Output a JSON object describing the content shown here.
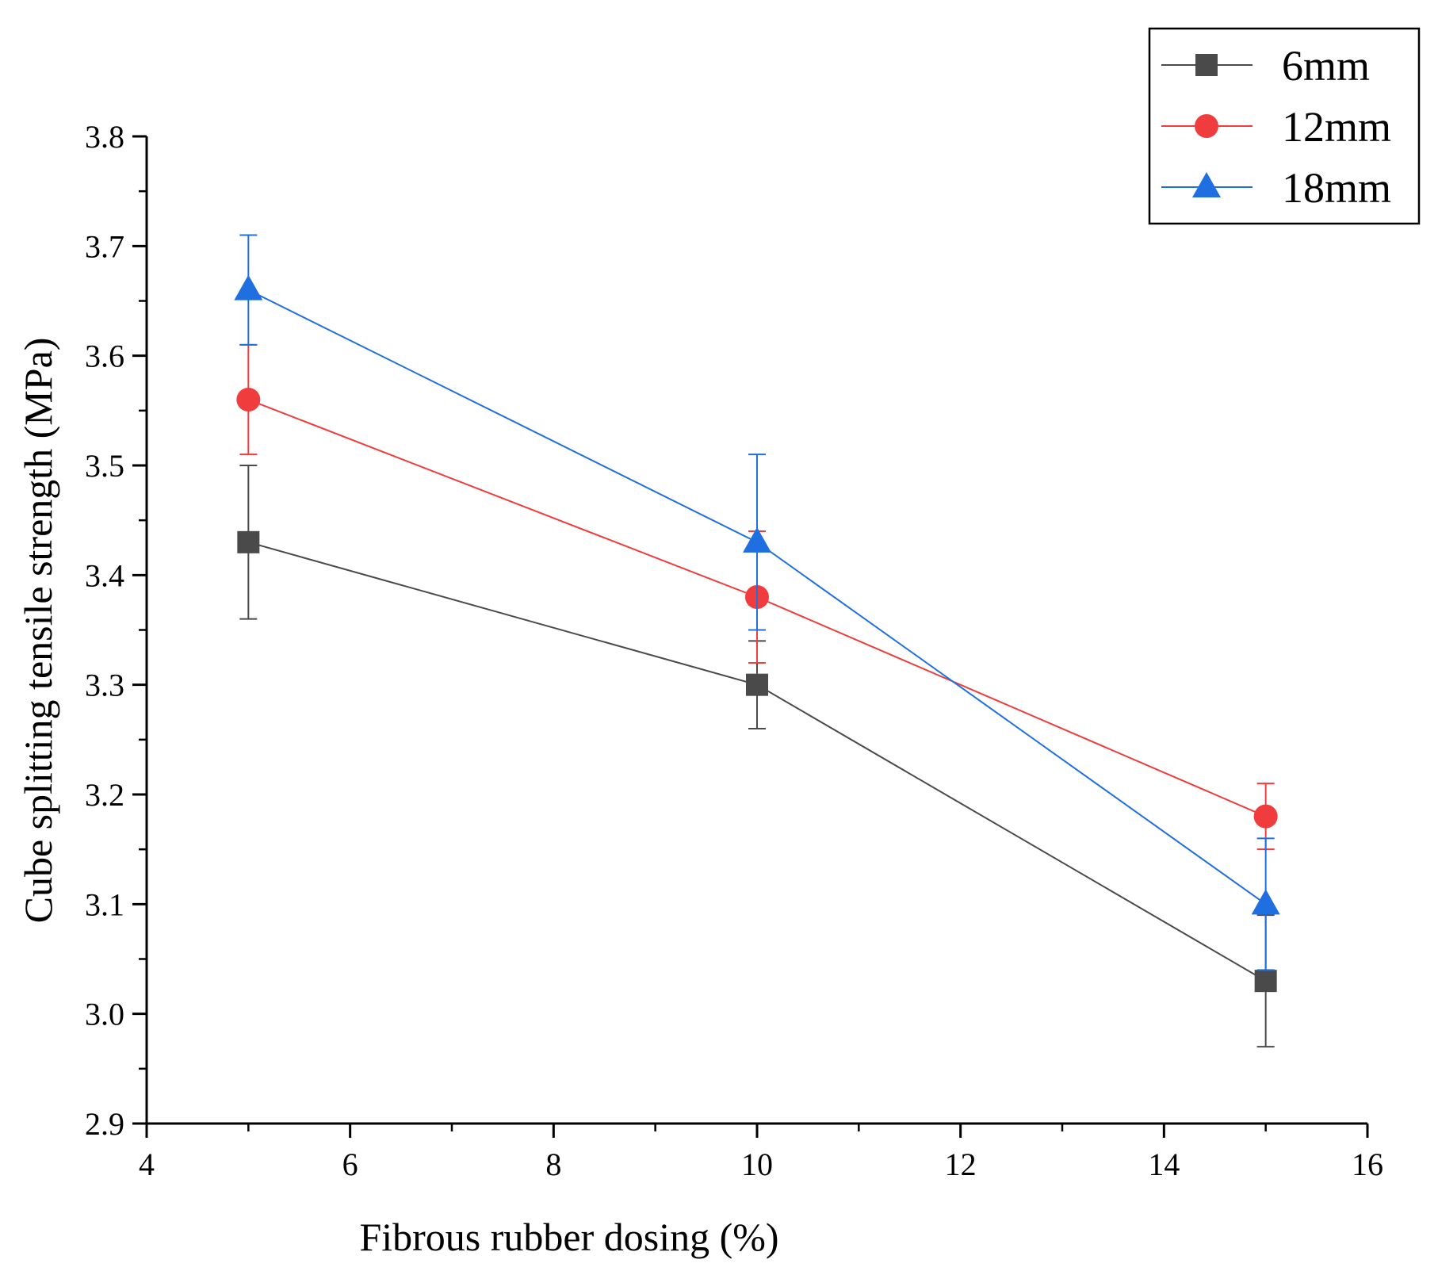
{
  "chart_data": {
    "type": "line",
    "title": "",
    "xlabel": "Fibrous rubber dosing (%)",
    "ylabel": "Cube splitting tensile strength (MPa)",
    "xlim": [
      4,
      16
    ],
    "ylim": [
      2.9,
      3.8
    ],
    "x_ticks": [
      4,
      6,
      8,
      10,
      12,
      14,
      16
    ],
    "x_tick_labels": [
      "4",
      "6",
      "8",
      "10",
      "12",
      "14",
      "16"
    ],
    "y_ticks": [
      2.9,
      3.0,
      3.1,
      3.2,
      3.3,
      3.4,
      3.5,
      3.6,
      3.7,
      3.8
    ],
    "y_tick_labels": [
      "2.9",
      "3.0",
      "3.1",
      "3.2",
      "3.3",
      "3.4",
      "3.5",
      "3.6",
      "3.7",
      "3.8"
    ],
    "grid": false,
    "legend_position": "top-right",
    "x": [
      5,
      10,
      15
    ],
    "series": [
      {
        "name": "6mm",
        "marker": "square",
        "color": "#4a4a4a",
        "values": [
          3.43,
          3.3,
          3.03
        ],
        "err_low": [
          3.36,
          3.26,
          2.97
        ],
        "err_high": [
          3.5,
          3.34,
          3.09
        ]
      },
      {
        "name": "12mm",
        "marker": "circle",
        "color": "#f03c3c",
        "values": [
          3.56,
          3.38,
          3.18
        ],
        "err_low": [
          3.51,
          3.32,
          3.15
        ],
        "err_high": [
          3.61,
          3.44,
          3.21
        ]
      },
      {
        "name": "18mm",
        "marker": "triangle",
        "color": "#1f6fe0",
        "values": [
          3.66,
          3.43,
          3.1
        ],
        "err_low": [
          3.61,
          3.35,
          3.04
        ],
        "err_high": [
          3.71,
          3.51,
          3.16
        ]
      }
    ]
  }
}
